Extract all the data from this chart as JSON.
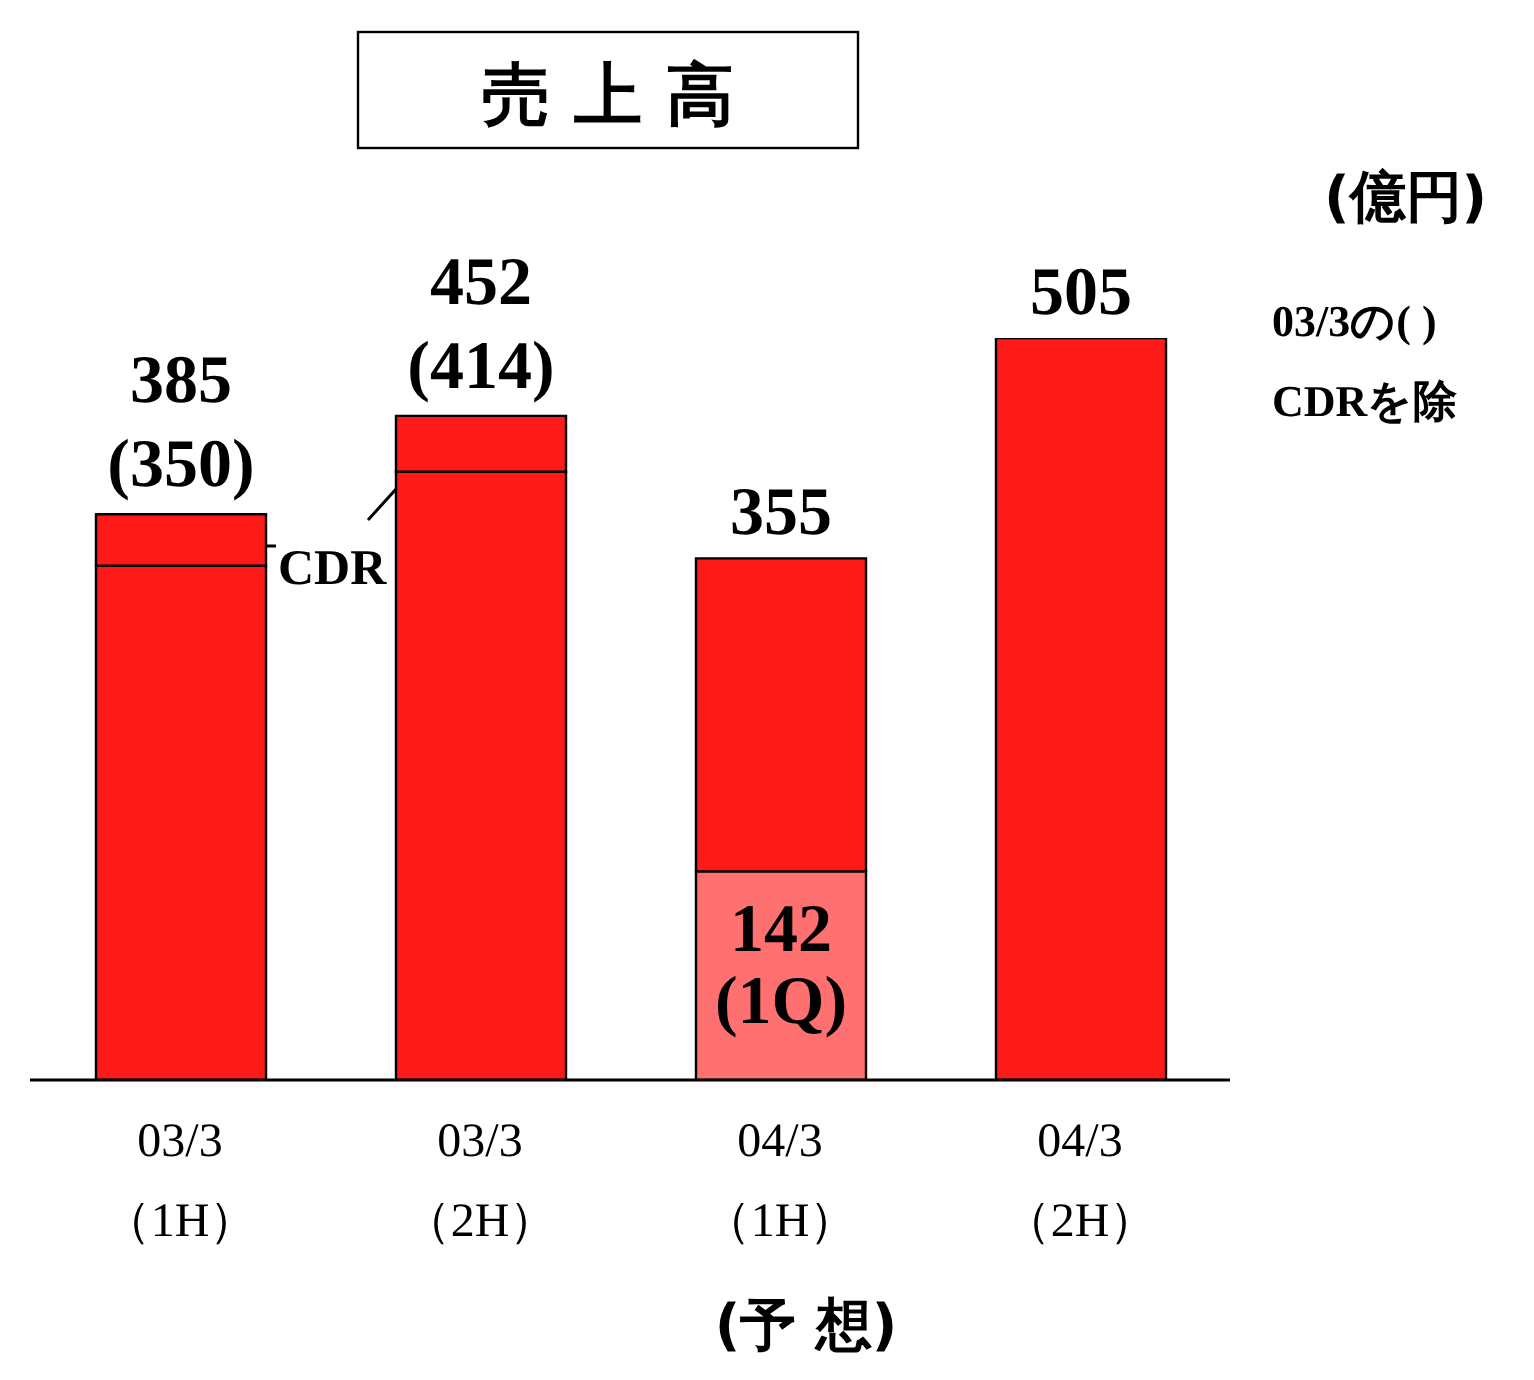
{
  "chart_data": {
    "type": "bar",
    "title": "売 上 高",
    "stacked": true,
    "categories": [
      "03/3\n（1H）",
      "03/3\n（2H）",
      "04/3\n（1H）",
      "04/3\n（2H）"
    ],
    "series": [
      {
        "color": "#ff1a1a",
        "colors": [
          "#ff1a1a",
          "#ff1a1a",
          "#ff7070",
          "#ff1a1a"
        ],
        "values": [
          350,
          414,
          142,
          505
        ],
        "value_labels": [
          "(350)",
          "(414)",
          "142\n(1Q)",
          null
        ]
      },
      {
        "color": "#ff1a1a",
        "values": [
          35,
          38,
          213,
          null
        ]
      }
    ],
    "totals": [
      "385",
      "452",
      "355",
      "505"
    ],
    "annotations": [
      "(億円)",
      "03/3の( )",
      "CDRを除",
      "CDR",
      "(予 想)"
    ]
  }
}
